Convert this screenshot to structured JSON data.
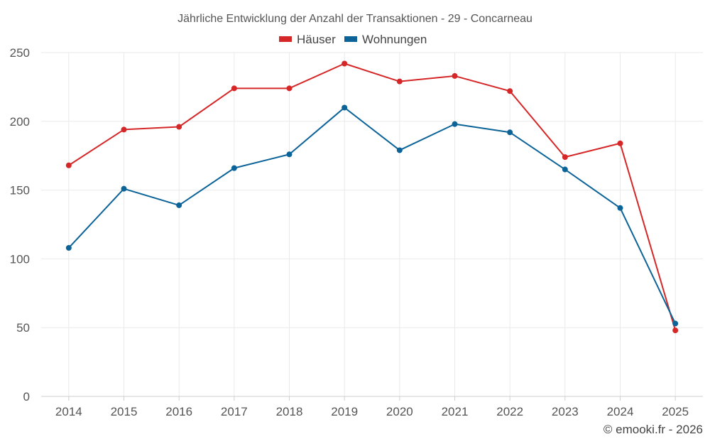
{
  "chart_data": {
    "type": "line",
    "title": "Jährliche Entwicklung der Anzahl der Transaktionen - 29 - Concarneau",
    "xlabel": "",
    "ylabel": "",
    "categories": [
      "2014",
      "2015",
      "2016",
      "2017",
      "2018",
      "2019",
      "2020",
      "2021",
      "2022",
      "2023",
      "2024",
      "2025"
    ],
    "ylim": [
      0,
      250
    ],
    "yticks": [
      0,
      50,
      100,
      150,
      200,
      250
    ],
    "grid": true,
    "legend_position": "top-center",
    "series": [
      {
        "name": "Häuser",
        "color": "#d62728",
        "values": [
          168,
          194,
          196,
          224,
          224,
          242,
          229,
          233,
          222,
          174,
          184,
          48
        ]
      },
      {
        "name": "Wohnungen",
        "color": "#0b6398",
        "values": [
          108,
          151,
          139,
          166,
          176,
          210,
          179,
          198,
          192,
          165,
          137,
          53
        ]
      }
    ],
    "credit": "© emooki.fr - 2026"
  }
}
